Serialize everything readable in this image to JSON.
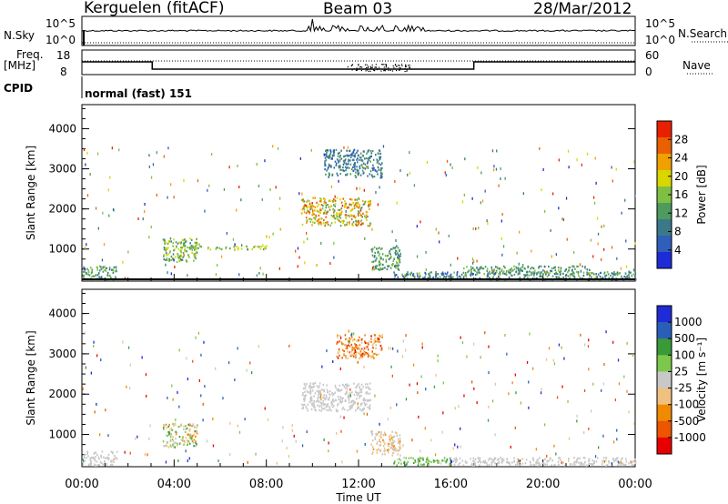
{
  "header": {
    "radar": "Kerguelen (fitACF)",
    "beam": "Beam 03",
    "date": "28/Mar/2012"
  },
  "strips": {
    "nsky_label": "N.Sky",
    "nsky_ticks": [
      "10^5",
      "10^0"
    ],
    "nsearch_label": "N.Search",
    "nsearch_ticks": [
      "10^5",
      "10^0"
    ],
    "freq_label_top": "Freq.",
    "freq_label_unit": "[MHz]",
    "freq_ticks": [
      "18",
      "8"
    ],
    "nave_label": "Nave",
    "nave_ticks": [
      "60",
      "0"
    ],
    "cpid_label": "CPID",
    "cpid_value": "normal (fast) 151"
  },
  "chart_data": [
    {
      "type": "heatmap",
      "name": "power",
      "ylabel": "Slant Range [km]",
      "yticks": [
        "4000",
        "3000",
        "2000",
        "1000"
      ],
      "ylim": [
        200,
        4600
      ],
      "colorbar": {
        "label": "Power [dB]",
        "ticks": [
          "28",
          "24",
          "20",
          "16",
          "12",
          "8",
          "4"
        ],
        "range": [
          0,
          31
        ],
        "colors": [
          "#1f2bd6",
          "#2f5fb8",
          "#3a7a88",
          "#4f9a5e",
          "#7ec042",
          "#d9d600",
          "#f0a000",
          "#e86000",
          "#e82000"
        ]
      },
      "regions": [
        {
          "x": [
            0.0,
            1.5
          ],
          "y": [
            250,
            600
          ],
          "levels": [
            8,
            16
          ]
        },
        {
          "x": [
            3.5,
            5.0
          ],
          "y": [
            700,
            1300
          ],
          "levels": [
            8,
            20
          ]
        },
        {
          "x": [
            4.2,
            8.0
          ],
          "y": [
            1000,
            1100
          ],
          "levels": [
            12,
            20
          ]
        },
        {
          "x": [
            9.5,
            12.5
          ],
          "y": [
            1600,
            2300
          ],
          "levels": [
            12,
            28
          ]
        },
        {
          "x": [
            10.5,
            13.0
          ],
          "y": [
            2800,
            3500
          ],
          "levels": [
            4,
            12
          ]
        },
        {
          "x": [
            12.5,
            13.8
          ],
          "y": [
            500,
            1100
          ],
          "levels": [
            8,
            16
          ]
        },
        {
          "x": [
            13.5,
            24.0
          ],
          "y": [
            250,
            450
          ],
          "levels": [
            4,
            16
          ]
        },
        {
          "x": [
            16.5,
            22.0
          ],
          "y": [
            400,
            600
          ],
          "levels": [
            8,
            16
          ]
        }
      ]
    },
    {
      "type": "heatmap",
      "name": "velocity",
      "ylabel": "Slant Range [km]",
      "xlabel": "Time UT",
      "xticks": [
        "00:00",
        "04:00",
        "08:00",
        "12:00",
        "16:00",
        "20:00",
        "00:00"
      ],
      "xlim": [
        0,
        24
      ],
      "yticks": [
        "4000",
        "3000",
        "2000",
        "1000"
      ],
      "ylim": [
        200,
        4600
      ],
      "colorbar": {
        "label": "Velocity [m s⁻¹]",
        "ticks": [
          "1000",
          "500",
          "100",
          "25",
          "-25",
          "-100",
          "-500",
          "-1000"
        ],
        "range": [
          -1200,
          1200
        ],
        "colors": [
          "#e80000",
          "#ee5500",
          "#f08a00",
          "#f0c080",
          "#c8c8c8",
          "#7cc84a",
          "#3a9a3a",
          "#2a5fb8",
          "#1f2bd6"
        ]
      },
      "regions": [
        {
          "x": [
            0.0,
            1.5
          ],
          "y": [
            250,
            600
          ],
          "levels": [
            -100,
            100
          ]
        },
        {
          "x": [
            3.5,
            5.0
          ],
          "y": [
            700,
            1300
          ],
          "levels": [
            -500,
            500
          ]
        },
        {
          "x": [
            9.5,
            12.5
          ],
          "y": [
            1600,
            2300
          ],
          "levels": [
            -25,
            25
          ]
        },
        {
          "x": [
            11.0,
            13.0
          ],
          "y": [
            2900,
            3500
          ],
          "levels": [
            -1000,
            -100
          ]
        },
        {
          "x": [
            12.5,
            13.8
          ],
          "y": [
            500,
            1100
          ],
          "levels": [
            -500,
            100
          ]
        },
        {
          "x": [
            13.5,
            16.0
          ],
          "y": [
            250,
            450
          ],
          "levels": [
            100,
            500
          ]
        },
        {
          "x": [
            16.0,
            24.0
          ],
          "y": [
            250,
            450
          ],
          "levels": [
            25,
            100
          ]
        }
      ]
    }
  ]
}
